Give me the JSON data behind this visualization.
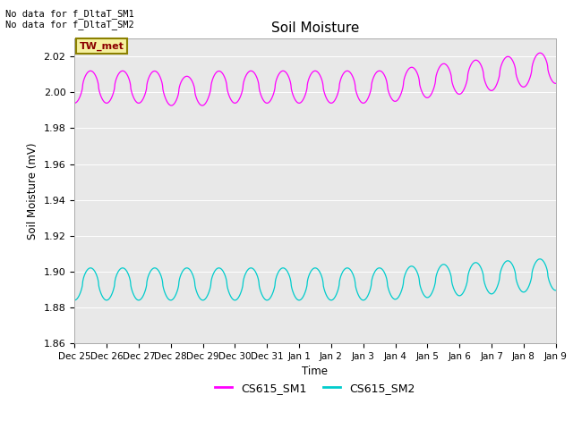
{
  "title": "Soil Moisture",
  "ylabel": "Soil Moisture (mV)",
  "xlabel": "Time",
  "ylim": [
    1.86,
    2.03
  ],
  "yticks": [
    1.86,
    1.88,
    1.9,
    1.92,
    1.94,
    1.96,
    1.98,
    2.0,
    2.02
  ],
  "no_data_text_1": "No data for f_DltaT_SM1",
  "no_data_text_2": "No data for f_DltaT_SM2",
  "tw_label": "TW_met",
  "legend_labels": [
    "CS615_SM1",
    "CS615_SM2"
  ],
  "color_sm1": "#FF00FF",
  "color_sm2": "#00CCCC",
  "bg_color": "#E8E8E8",
  "xtick_labels": [
    "Dec 25",
    "Dec 26",
    "Dec 27",
    "Dec 28",
    "Dec 29",
    "Dec 30",
    "Dec 31",
    "Jan 1",
    "Jan 2",
    "Jan 3",
    "Jan 4",
    "Jan 5",
    "Jan 6",
    "Jan 7",
    "Jan 8",
    "Jan 9"
  ],
  "sm1_base": 2.003,
  "sm1_amp": 0.009,
  "sm2_base": 1.893,
  "sm2_amp": 0.009,
  "num_points": 3000
}
